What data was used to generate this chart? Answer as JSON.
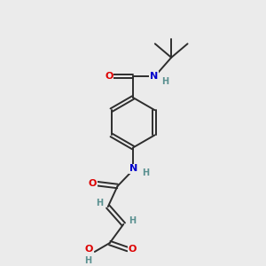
{
  "background_color": "#ebebeb",
  "bond_color": "#2d2d2d",
  "atom_colors": {
    "O": "#dd0000",
    "N": "#0000cc",
    "C": "#2d2d2d",
    "H": "#5a9090"
  },
  "figsize": [
    3.0,
    3.0
  ],
  "dpi": 100
}
